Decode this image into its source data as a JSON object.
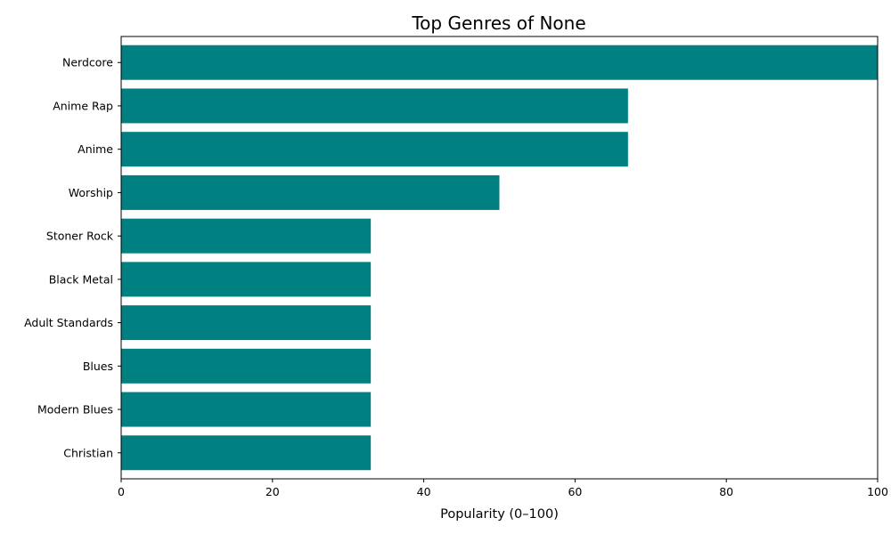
{
  "chart_data": {
    "type": "bar",
    "orientation": "horizontal",
    "title": "Top Genres of None",
    "xlabel": "Popularity (0–100)",
    "ylabel": "",
    "xlim": [
      0,
      100
    ],
    "xticks": [
      0,
      20,
      40,
      60,
      80,
      100
    ],
    "grid": false,
    "bar_color": "#008080",
    "categories": [
      "Nerdcore",
      "Anime Rap",
      "Anime",
      "Worship",
      "Stoner Rock",
      "Black Metal",
      "Adult Standards",
      "Blues",
      "Modern Blues",
      "Christian"
    ],
    "values": [
      100,
      67,
      67,
      50,
      33,
      33,
      33,
      33,
      33,
      33
    ]
  }
}
